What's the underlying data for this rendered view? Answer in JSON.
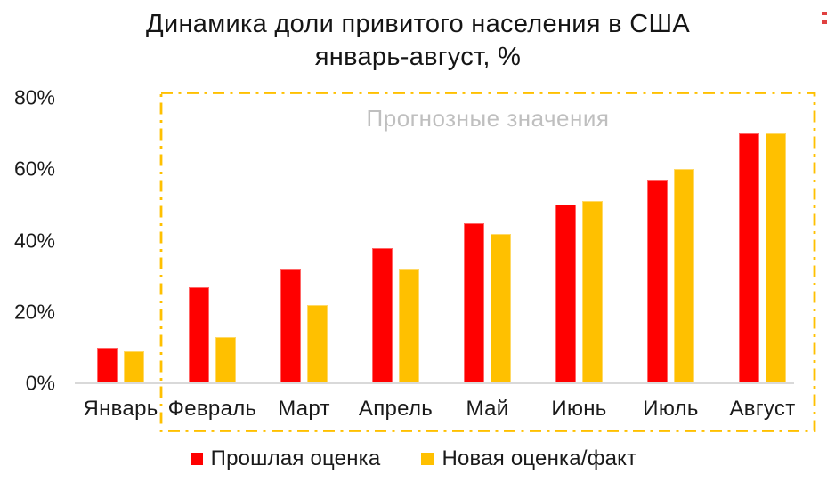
{
  "title": {
    "line1": "Динамика доли привитого населения в США",
    "line2": "январь-август, %"
  },
  "annotation": {
    "text": "Прогнозные значения",
    "color": "#BFBFBF"
  },
  "colors": {
    "past_estimate": "#FF0000",
    "new_estimate": "#FFC000",
    "axis_line": "#D9D9D9",
    "forecast_border": "#FFC000",
    "edge_marks": "#E04040",
    "title_text": "#151515"
  },
  "y_axis": {
    "tick_labels": [
      "0%",
      "20%",
      "40%",
      "60%",
      "80%"
    ],
    "tick_values": [
      0,
      20,
      40,
      60,
      80
    ]
  },
  "chart_data": {
    "type": "bar",
    "title": "Динамика доли привитого населения в США январь-август, %",
    "categories": [
      "Январь",
      "Февраль",
      "Март",
      "Апрель",
      "Май",
      "Июнь",
      "Июль",
      "Август"
    ],
    "series": [
      {
        "key": "past-estimate",
        "name": "Прошлая оценка",
        "color": "#FF0000",
        "values": [
          10,
          27,
          32,
          38,
          45,
          50,
          57,
          70
        ]
      },
      {
        "key": "new-estimate",
        "name": "Новая оценка/факт",
        "color": "#FFC000",
        "values": [
          9,
          13,
          22,
          32,
          42,
          51,
          60,
          70
        ]
      }
    ],
    "ylabel": "",
    "xlabel": "",
    "ylim": [
      0,
      80
    ],
    "yticks_percent": [
      0,
      20,
      40,
      60,
      80
    ],
    "grid": false,
    "legend_position": "bottom",
    "annotation": "Прогнозные значения",
    "forecast_region_categories": [
      "Февраль",
      "Март",
      "Апрель",
      "Май",
      "Июнь",
      "Июль",
      "Август"
    ]
  },
  "legend": {
    "items": [
      {
        "key": "past-estimate",
        "label": "Прошлая оценка",
        "color": "#FF0000"
      },
      {
        "key": "new-estimate",
        "label": "Новая оценка/факт",
        "color": "#FFC000"
      }
    ]
  }
}
